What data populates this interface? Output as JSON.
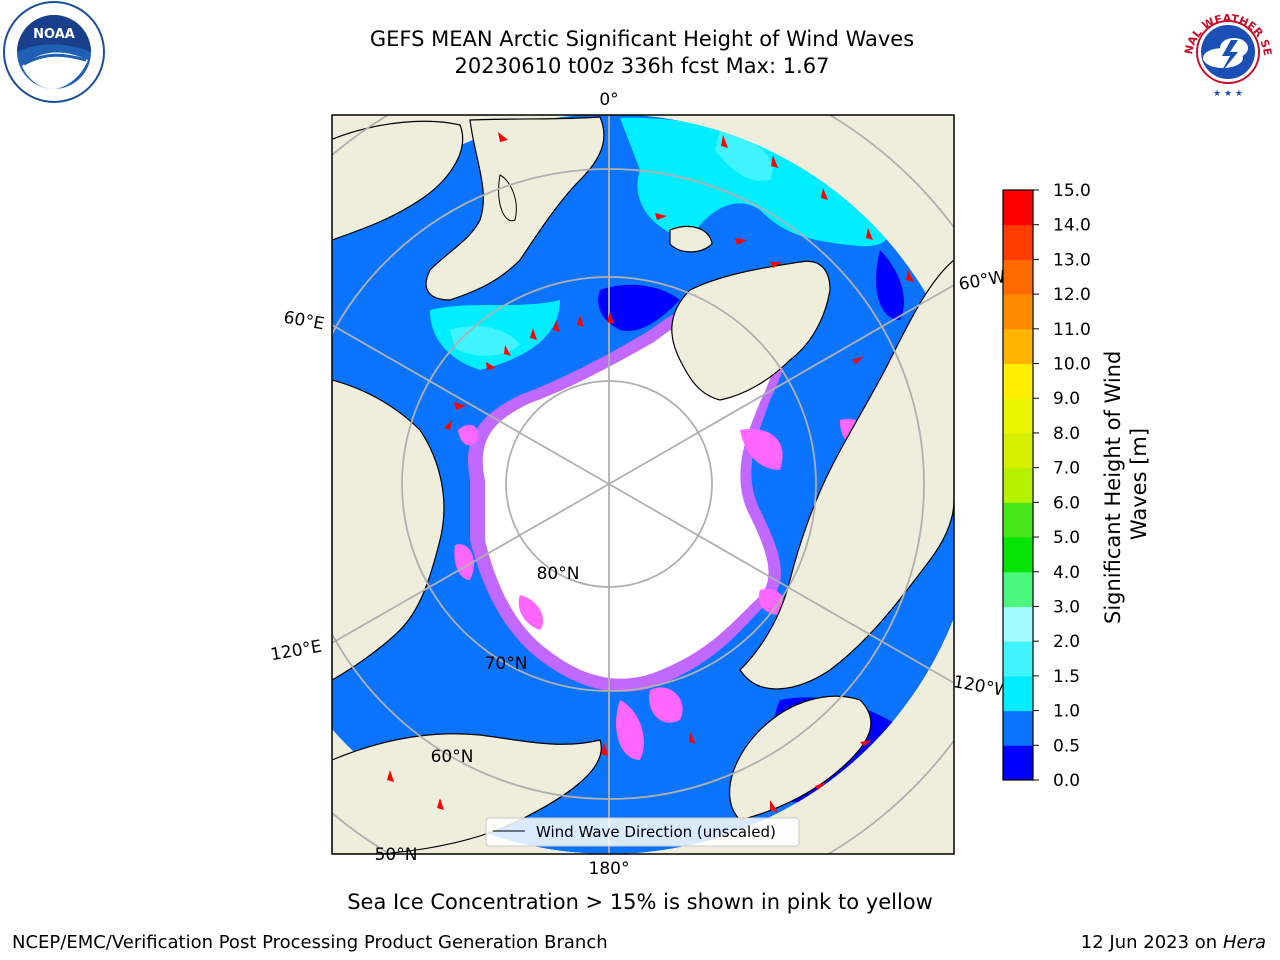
{
  "header": {
    "title": "GEFS MEAN Arctic Significant Height of Wind Waves",
    "subtitle": "20230610 t00z 336h fcst   Max: 1.67"
  },
  "logos": {
    "left": "NOAA",
    "right": "NATIONAL WEATHER SERVICE"
  },
  "map": {
    "projection": "north-polar-stereographic",
    "longitude_labels": [
      "0°",
      "60°E",
      "60°W",
      "120°E",
      "120°W",
      "180°"
    ],
    "latitude_labels": [
      "80°N",
      "70°N",
      "60°N",
      "50°N"
    ],
    "legend_label": "Wind Wave Direction (unscaled)",
    "colors": {
      "land": "#efeedc",
      "ocean_no_data": "#ffffff",
      "ice_edge": [
        "#ff66ff",
        "#ffb0a0",
        "#ffff66"
      ],
      "graticule": "#b0b0b0"
    }
  },
  "colorbar": {
    "label": "Significant Height of Wind Waves [m]",
    "ticks": [
      "15.0",
      "14.0",
      "13.0",
      "12.0",
      "11.0",
      "10.0",
      "9.0",
      "8.0",
      "7.0",
      "6.0",
      "5.0",
      "4.0",
      "3.0",
      "2.0",
      "1.5",
      "1.0",
      "0.5",
      "0.0"
    ],
    "bins": [
      {
        "from": 0.0,
        "to": 0.5,
        "color": "#0000ff"
      },
      {
        "from": 0.5,
        "to": 1.0,
        "color": "#0a74ff"
      },
      {
        "from": 1.0,
        "to": 1.5,
        "color": "#00eeff"
      },
      {
        "from": 1.5,
        "to": 2.0,
        "color": "#40f3ff"
      },
      {
        "from": 2.0,
        "to": 3.0,
        "color": "#9ffbff"
      },
      {
        "from": 3.0,
        "to": 4.0,
        "color": "#4bf77d"
      },
      {
        "from": 4.0,
        "to": 5.0,
        "color": "#06e306"
      },
      {
        "from": 5.0,
        "to": 6.0,
        "color": "#46e61a"
      },
      {
        "from": 6.0,
        "to": 7.0,
        "color": "#b4f200"
      },
      {
        "from": 7.0,
        "to": 8.0,
        "color": "#d8f000"
      },
      {
        "from": 8.0,
        "to": 9.0,
        "color": "#e9f600"
      },
      {
        "from": 9.0,
        "to": 10.0,
        "color": "#ffee00"
      },
      {
        "from": 10.0,
        "to": 11.0,
        "color": "#ffb400"
      },
      {
        "from": 11.0,
        "to": 12.0,
        "color": "#ff8c00"
      },
      {
        "from": 12.0,
        "to": 13.0,
        "color": "#ff6a00"
      },
      {
        "from": 13.0,
        "to": 14.0,
        "color": "#ff3c00"
      },
      {
        "from": 14.0,
        "to": 15.0,
        "color": "#ff0000"
      }
    ]
  },
  "note": "Sea Ice Concentration > 15% is shown in pink to yellow",
  "footer": {
    "left": "NCEP/EMC/Verification Post Processing Product Generation Branch",
    "date": "12 Jun 2023 on",
    "machine": "Hera"
  }
}
